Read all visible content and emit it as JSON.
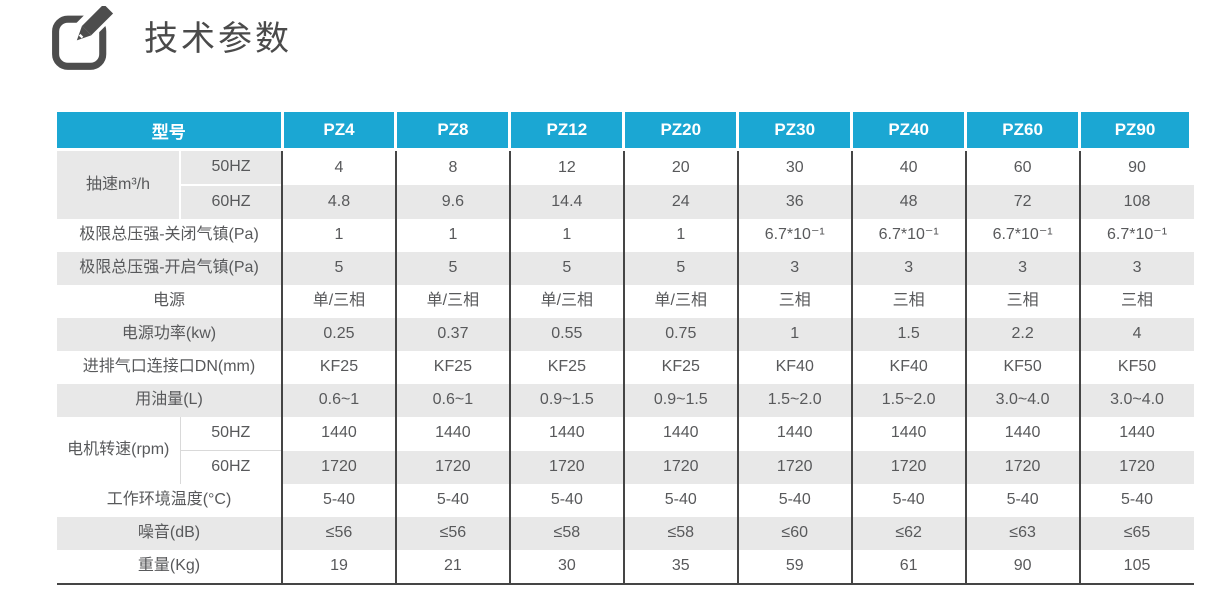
{
  "page": {
    "title": "技术参数"
  },
  "theme": {
    "accent_cyan": "#1ba7d3",
    "zebra_gray": "#e8e8e8",
    "border_dark": "#454545",
    "text_gray": "#58595b",
    "header_text": "#ffffff",
    "title_gray": "#4a4a4a"
  },
  "icons": {
    "title_icon": "edit-pencil-icon"
  },
  "table": {
    "header": {
      "label": "型号",
      "models": [
        "PZ4",
        "PZ8",
        "PZ12",
        "PZ20",
        "PZ30",
        "PZ40",
        "PZ60",
        "PZ90"
      ]
    },
    "rows": [
      {
        "label": "抽速m³/h",
        "sub": "50HZ",
        "group": "start",
        "shade": "gray",
        "zebra": "white",
        "values": [
          "4",
          "8",
          "12",
          "20",
          "30",
          "40",
          "60",
          "90"
        ]
      },
      {
        "sub": "60HZ",
        "group": "end",
        "shade": "gray",
        "zebra": "gray",
        "values": [
          "4.8",
          "9.6",
          "14.4",
          "24",
          "36",
          "48",
          "72",
          "108"
        ]
      },
      {
        "label": "极限总压强-关闭气镇(Pa)",
        "zebra": "white",
        "values": [
          "1",
          "1",
          "1",
          "1",
          "6.7*10⁻¹",
          "6.7*10⁻¹",
          "6.7*10⁻¹",
          "6.7*10⁻¹"
        ]
      },
      {
        "label": "极限总压强-开启气镇(Pa)",
        "zebra": "gray",
        "values": [
          "5",
          "5",
          "5",
          "5",
          "3",
          "3",
          "3",
          "3"
        ]
      },
      {
        "label": "电源",
        "zebra": "white",
        "values": [
          "单/三相",
          "单/三相",
          "单/三相",
          "单/三相",
          "三相",
          "三相",
          "三相",
          "三相"
        ]
      },
      {
        "label": "电源功率(kw)",
        "zebra": "gray",
        "values": [
          "0.25",
          "0.37",
          "0.55",
          "0.75",
          "1",
          "1.5",
          "2.2",
          "4"
        ]
      },
      {
        "label": "进排气口连接口DN(mm)",
        "zebra": "white",
        "values": [
          "KF25",
          "KF25",
          "KF25",
          "KF25",
          "KF40",
          "KF40",
          "KF50",
          "KF50"
        ]
      },
      {
        "label": "用油量(L)",
        "zebra": "gray",
        "values": [
          "0.6~1",
          "0.6~1",
          "0.9~1.5",
          "0.9~1.5",
          "1.5~2.0",
          "1.5~2.0",
          "3.0~4.0",
          "3.0~4.0"
        ]
      },
      {
        "label": "电机转速(rpm)",
        "sub": "50HZ",
        "group": "start",
        "shade": "white",
        "zebra": "white",
        "values": [
          "1440",
          "1440",
          "1440",
          "1440",
          "1440",
          "1440",
          "1440",
          "1440"
        ]
      },
      {
        "sub": "60HZ",
        "group": "end",
        "shade": "white",
        "zebra": "gray",
        "values": [
          "1720",
          "1720",
          "1720",
          "1720",
          "1720",
          "1720",
          "1720",
          "1720"
        ]
      },
      {
        "label": "工作环境温度(°C)",
        "zebra": "white",
        "values": [
          "5-40",
          "5-40",
          "5-40",
          "5-40",
          "5-40",
          "5-40",
          "5-40",
          "5-40"
        ]
      },
      {
        "label": "噪音(dB)",
        "zebra": "gray",
        "values": [
          "≤56",
          "≤56",
          "≤58",
          "≤58",
          "≤60",
          "≤62",
          "≤63",
          "≤65"
        ]
      },
      {
        "label": "重量(Kg)",
        "zebra": "white",
        "values": [
          "19",
          "21",
          "30",
          "35",
          "59",
          "61",
          "90",
          "105"
        ]
      }
    ]
  }
}
